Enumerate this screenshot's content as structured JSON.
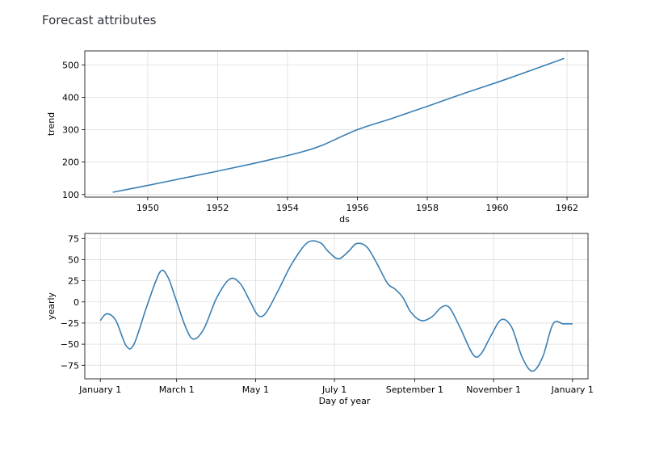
{
  "page": {
    "title": "Forecast attributes"
  },
  "colors": {
    "line": "#3a7fb3",
    "grid": "#dddddd",
    "axis": "#000000"
  },
  "chart_data": [
    {
      "type": "line",
      "name": "trend-panel",
      "xlabel": "ds",
      "ylabel": "trend",
      "x_is_date_year": true,
      "xlim": [
        1948.2,
        1962.6
      ],
      "ylim": [
        92,
        543
      ],
      "xticks": [
        1950,
        1952,
        1954,
        1956,
        1958,
        1960,
        1962
      ],
      "xtick_labels": [
        "1950",
        "1952",
        "1954",
        "1956",
        "1958",
        "1960",
        "1962"
      ],
      "yticks": [
        100,
        200,
        300,
        400,
        500
      ],
      "ytick_labels": [
        "100",
        "200",
        "300",
        "400",
        "500"
      ],
      "grid": true,
      "series": [
        {
          "x": [
            1949.0,
            1950.0,
            1951.0,
            1952.0,
            1953.0,
            1954.0,
            1954.5,
            1955.0,
            1956.0,
            1957.0,
            1958.0,
            1959.0,
            1960.0,
            1961.0,
            1961.92
          ],
          "y": [
            107,
            128,
            150,
            172,
            195,
            220,
            234,
            252,
            300,
            335,
            372,
            410,
            446,
            484,
            520
          ]
        }
      ]
    },
    {
      "type": "line",
      "name": "yearly-panel",
      "xlabel": "Day of year",
      "ylabel": "yearly",
      "xlim": [
        -12,
        377
      ],
      "ylim": [
        -91,
        81
      ],
      "xticks": [
        0,
        59,
        120,
        181,
        243,
        304,
        365
      ],
      "xtick_labels": [
        "January 1",
        "March 1",
        "May 1",
        "July 1",
        "September 1",
        "November 1",
        "January 1"
      ],
      "yticks": [
        -75,
        -50,
        -25,
        0,
        25,
        50,
        75
      ],
      "ytick_labels": [
        "−75",
        "−50",
        "−25",
        "0",
        "25",
        "50",
        "75"
      ],
      "grid": true,
      "series": [
        {
          "x": [
            0,
            5,
            12,
            20,
            26,
            36,
            46,
            52,
            58,
            66,
            72,
            80,
            90,
            100,
            108,
            116,
            122,
            128,
            138,
            148,
            160,
            170,
            176,
            184,
            192,
            198,
            206,
            214,
            222,
            228,
            234,
            240,
            248,
            256,
            264,
            270,
            278,
            288,
            294,
            302,
            310,
            318,
            326,
            334,
            342,
            350,
            358,
            365
          ],
          "y": [
            -22,
            -14,
            -22,
            -52,
            -50,
            -5,
            35,
            30,
            5,
            -30,
            -44,
            -32,
            5,
            27,
            22,
            0,
            -16,
            -13,
            15,
            45,
            70,
            70,
            60,
            51,
            60,
            69,
            65,
            45,
            22,
            15,
            5,
            -12,
            -22,
            -18,
            -6,
            -7,
            -30,
            -62,
            -62,
            -40,
            -21,
            -30,
            -65,
            -82,
            -65,
            -26,
            -26,
            -26
          ]
        }
      ]
    }
  ]
}
